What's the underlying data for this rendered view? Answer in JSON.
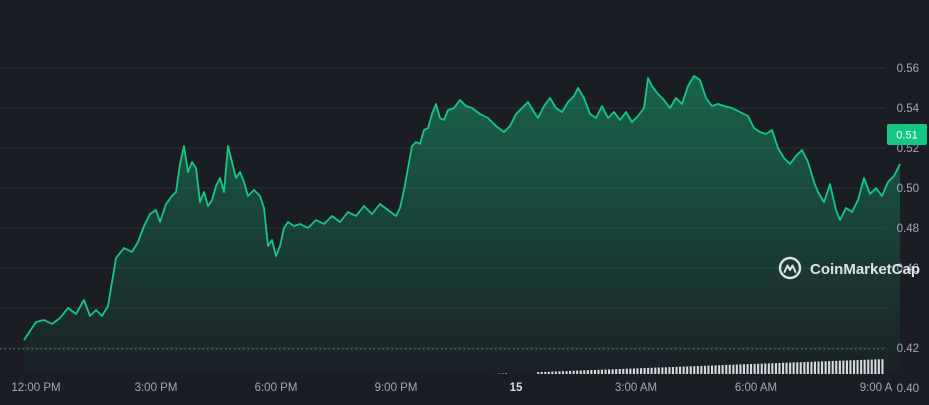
{
  "watermark": {
    "text": "CoinMarketCap",
    "icon": "coinmarketcap-logo-icon"
  },
  "price_badge": {
    "label": "0.51",
    "color": "#16c784"
  },
  "colors": {
    "background": "#1a1d24",
    "line": "#16c784",
    "volume_bars": "#e6e8ec",
    "grid": "#2b2f38",
    "axis_text": "#a1a7bb",
    "baseline_dots": "#6b7280"
  },
  "chart_data": {
    "type": "area",
    "title": "",
    "xlabel": "",
    "ylabel": "",
    "ylim": [
      0.385,
      0.565
    ],
    "y_ticks": [
      0.4,
      0.42,
      0.44,
      0.46,
      0.48,
      0.5,
      0.52,
      0.54,
      0.56
    ],
    "y_tick_labels": [
      "0.40",
      "0.42",
      "",
      "0.46",
      "0.48",
      "0.50",
      "0.52",
      "0.54",
      "0.56"
    ],
    "x_ticks": [
      {
        "label": "12:00 PM",
        "hour": 0
      },
      {
        "label": "3:00 PM",
        "hour": 3
      },
      {
        "label": "6:00 PM",
        "hour": 6
      },
      {
        "label": "9:00 PM",
        "hour": 9
      },
      {
        "label": "15",
        "hour": 12
      },
      {
        "label": "3:00 AM",
        "hour": 15
      },
      {
        "label": "6:00 AM",
        "hour": 18
      },
      {
        "label": "9:00 A",
        "hour": 21
      }
    ],
    "reference_line": 0.4195,
    "series": [
      {
        "values": [
          [
            -0.3,
            0.424
          ],
          [
            0.0,
            0.433
          ],
          [
            0.2,
            0.434
          ],
          [
            0.4,
            0.432
          ],
          [
            0.6,
            0.435
          ],
          [
            0.8,
            0.44
          ],
          [
            1.0,
            0.437
          ],
          [
            1.2,
            0.444
          ],
          [
            1.35,
            0.436
          ],
          [
            1.5,
            0.439
          ],
          [
            1.65,
            0.436
          ],
          [
            1.8,
            0.441
          ],
          [
            2.0,
            0.465
          ],
          [
            2.2,
            0.47
          ],
          [
            2.4,
            0.468
          ],
          [
            2.55,
            0.473
          ],
          [
            2.7,
            0.481
          ],
          [
            2.85,
            0.487
          ],
          [
            3.0,
            0.489
          ],
          [
            3.1,
            0.483
          ],
          [
            3.25,
            0.492
          ],
          [
            3.4,
            0.496
          ],
          [
            3.5,
            0.498
          ],
          [
            3.6,
            0.512
          ],
          [
            3.7,
            0.521
          ],
          [
            3.8,
            0.508
          ],
          [
            3.9,
            0.513
          ],
          [
            4.0,
            0.51
          ],
          [
            4.1,
            0.493
          ],
          [
            4.2,
            0.498
          ],
          [
            4.3,
            0.491
          ],
          [
            4.4,
            0.494
          ],
          [
            4.5,
            0.501
          ],
          [
            4.6,
            0.505
          ],
          [
            4.7,
            0.498
          ],
          [
            4.8,
            0.521
          ],
          [
            4.9,
            0.513
          ],
          [
            5.0,
            0.505
          ],
          [
            5.1,
            0.508
          ],
          [
            5.2,
            0.503
          ],
          [
            5.3,
            0.496
          ],
          [
            5.45,
            0.499
          ],
          [
            5.6,
            0.496
          ],
          [
            5.7,
            0.49
          ],
          [
            5.8,
            0.471
          ],
          [
            5.9,
            0.474
          ],
          [
            6.0,
            0.466
          ],
          [
            6.1,
            0.471
          ],
          [
            6.2,
            0.48
          ],
          [
            6.3,
            0.483
          ],
          [
            6.45,
            0.481
          ],
          [
            6.6,
            0.482
          ],
          [
            6.8,
            0.48
          ],
          [
            7.0,
            0.484
          ],
          [
            7.2,
            0.482
          ],
          [
            7.4,
            0.486
          ],
          [
            7.6,
            0.483
          ],
          [
            7.8,
            0.488
          ],
          [
            8.0,
            0.486
          ],
          [
            8.2,
            0.491
          ],
          [
            8.4,
            0.487
          ],
          [
            8.6,
            0.492
          ],
          [
            8.8,
            0.489
          ],
          [
            9.0,
            0.486
          ],
          [
            9.1,
            0.49
          ],
          [
            9.2,
            0.499
          ],
          [
            9.3,
            0.51
          ],
          [
            9.4,
            0.521
          ],
          [
            9.5,
            0.523
          ],
          [
            9.6,
            0.522
          ],
          [
            9.7,
            0.529
          ],
          [
            9.8,
            0.53
          ],
          [
            9.9,
            0.537
          ],
          [
            10.0,
            0.542
          ],
          [
            10.1,
            0.535
          ],
          [
            10.2,
            0.534
          ],
          [
            10.3,
            0.539
          ],
          [
            10.45,
            0.54
          ],
          [
            10.6,
            0.544
          ],
          [
            10.75,
            0.541
          ],
          [
            10.9,
            0.54
          ],
          [
            11.1,
            0.537
          ],
          [
            11.3,
            0.535
          ],
          [
            11.5,
            0.531
          ],
          [
            11.7,
            0.528
          ],
          [
            11.85,
            0.531
          ],
          [
            12.0,
            0.537
          ],
          [
            12.15,
            0.54
          ],
          [
            12.3,
            0.543
          ],
          [
            12.45,
            0.538
          ],
          [
            12.55,
            0.535
          ],
          [
            12.7,
            0.541
          ],
          [
            12.85,
            0.545
          ],
          [
            13.0,
            0.54
          ],
          [
            13.15,
            0.538
          ],
          [
            13.3,
            0.543
          ],
          [
            13.45,
            0.546
          ],
          [
            13.55,
            0.55
          ],
          [
            13.7,
            0.545
          ],
          [
            13.85,
            0.537
          ],
          [
            14.0,
            0.535
          ],
          [
            14.15,
            0.541
          ],
          [
            14.3,
            0.535
          ],
          [
            14.45,
            0.538
          ],
          [
            14.6,
            0.534
          ],
          [
            14.75,
            0.538
          ],
          [
            14.9,
            0.533
          ],
          [
            15.05,
            0.536
          ],
          [
            15.2,
            0.54
          ],
          [
            15.3,
            0.555
          ],
          [
            15.4,
            0.551
          ],
          [
            15.55,
            0.547
          ],
          [
            15.7,
            0.544
          ],
          [
            15.85,
            0.54
          ],
          [
            16.0,
            0.545
          ],
          [
            16.15,
            0.542
          ],
          [
            16.3,
            0.551
          ],
          [
            16.45,
            0.556
          ],
          [
            16.6,
            0.554
          ],
          [
            16.75,
            0.545
          ],
          [
            16.9,
            0.541
          ],
          [
            17.05,
            0.542
          ],
          [
            17.2,
            0.541
          ],
          [
            17.4,
            0.54
          ],
          [
            17.6,
            0.538
          ],
          [
            17.8,
            0.536
          ],
          [
            17.95,
            0.53
          ],
          [
            18.1,
            0.528
          ],
          [
            18.25,
            0.527
          ],
          [
            18.4,
            0.529
          ],
          [
            18.55,
            0.52
          ],
          [
            18.7,
            0.515
          ],
          [
            18.85,
            0.512
          ],
          [
            19.0,
            0.516
          ],
          [
            19.15,
            0.519
          ],
          [
            19.3,
            0.513
          ],
          [
            19.45,
            0.503
          ],
          [
            19.55,
            0.498
          ],
          [
            19.7,
            0.493
          ],
          [
            19.85,
            0.502
          ],
          [
            20.0,
            0.489
          ],
          [
            20.1,
            0.484
          ],
          [
            20.25,
            0.49
          ],
          [
            20.4,
            0.488
          ],
          [
            20.55,
            0.494
          ],
          [
            20.7,
            0.505
          ],
          [
            20.85,
            0.497
          ],
          [
            21.0,
            0.5
          ],
          [
            21.15,
            0.496
          ],
          [
            21.3,
            0.503
          ],
          [
            21.45,
            0.506
          ],
          [
            21.6,
            0.512
          ]
        ]
      }
    ],
    "volume": {
      "start": 0.3955,
      "end": 0.4145,
      "dip_hour": 12.1,
      "dip_value": 0.4025
    }
  }
}
